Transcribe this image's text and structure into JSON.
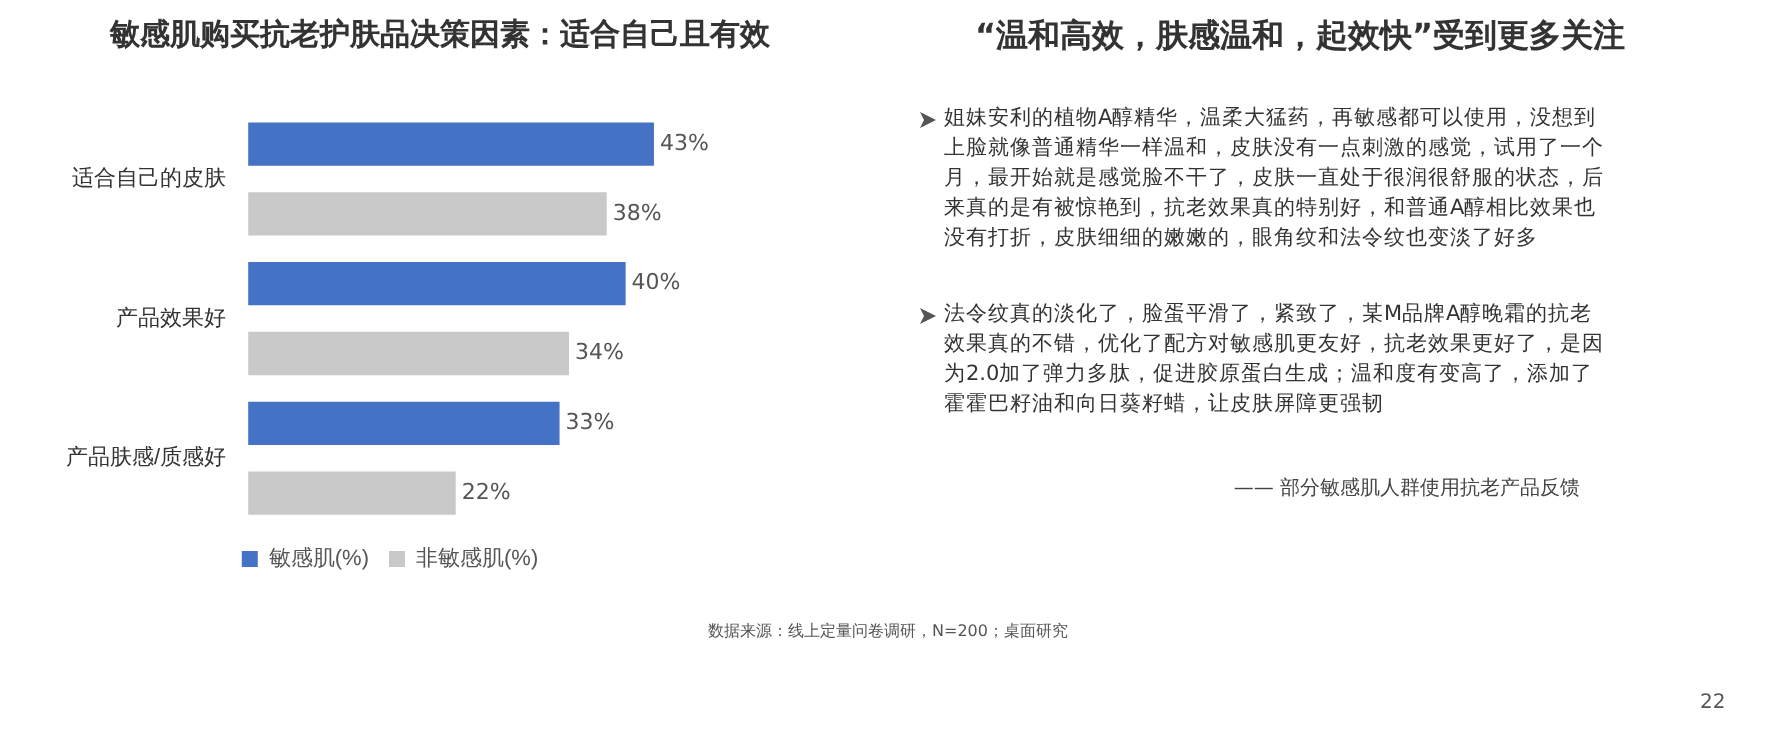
{
  "chart_data": [
    {
      "type": "bar",
      "orientation": "horizontal",
      "title": "敏感肌购买抗老护肤品决策因素：适合自己且有效",
      "categories": [
        "适合自己的皮肤",
        "产品效果好",
        "产品肤感/质感好"
      ],
      "series": [
        {
          "name": "敏感肌(%)",
          "color": "#4472c4",
          "values": [
            43,
            40,
            33
          ],
          "value_labels": [
            "43%",
            "40%",
            "33%"
          ]
        },
        {
          "name": "非敏感肌(%)",
          "color": "#c9c9c9",
          "values": [
            38,
            34,
            22
          ],
          "value_labels": [
            "38%",
            "34%",
            "22%"
          ]
        }
      ],
      "legend": "bottom",
      "annotations": [
        "数据来源：线上定量问卷调研，N=200；桌面研究"
      ]
    },
    {
      "type": "other",
      "title": "“温和高效，肤感温和，起效快”受到更多关注",
      "annotations": [
        "姐妹安利的植物A醇精华，温柔大猛药，再敏感都可以使用，没想到上脸就像普通精华一样温和，皮肤没有一点刺激的感觉，试用了一个月，最开始就是感觉脸不干了，皮肤一直处于很润很舒服的状态，后来真的是有被惊艳到，抗老效果真的特别好，和普通A醇相比效果也没有打折，皮肤细细的嫩嫩的，眼角纹和法令纹也变淡了好多",
        "法令纹真的淡化了，脸蛋平滑了，紧致了，某M品牌A醇晚霜的抗老效果真的不错，优化了配方对敏感肌更友好，抗老效果更好了，是因为2.0加了弹力多肽，促进胶原蛋白生成；温和度有变高了，添加了霍霍巴籽油和向日葵籽蜡，让皮肤屏障更强韧",
        "—— 部分敏感肌人群使用抗老产品反馈",
        "22"
      ]
    }
  ]
}
